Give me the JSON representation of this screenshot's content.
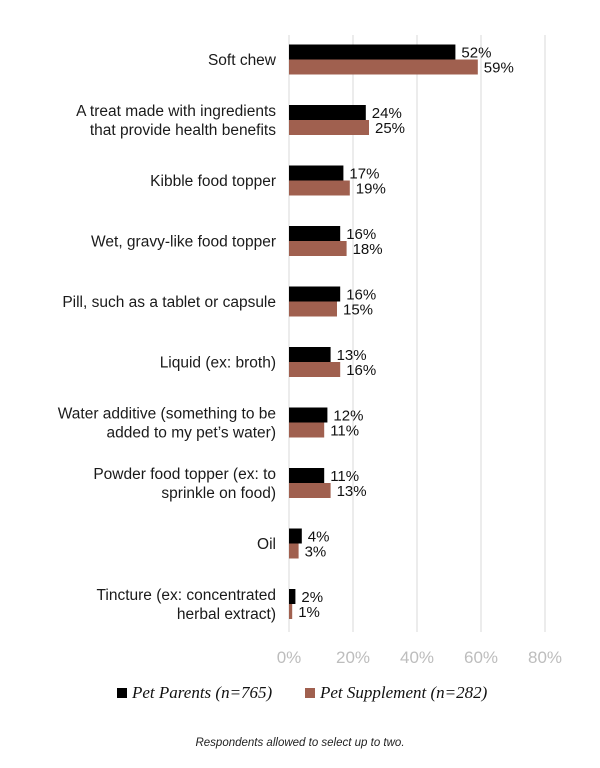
{
  "chart_data": {
    "type": "bar",
    "orientation": "horizontal",
    "title": "",
    "xlabel": "",
    "ylabel": "",
    "xlim": [
      0,
      80
    ],
    "xticks": [
      "0%",
      "20%",
      "40%",
      "60%",
      "80%"
    ],
    "grid": true,
    "legend_position": "bottom",
    "categories": [
      [
        "Soft chew"
      ],
      [
        "A treat made with ingredients",
        "that provide health benefits"
      ],
      [
        "Kibble food topper"
      ],
      [
        "Wet, gravy-like food topper"
      ],
      [
        "Pill, such as a tablet or capsule"
      ],
      [
        "Liquid (ex: broth)"
      ],
      [
        "Water additive (something to be",
        "added to my pet’s water)"
      ],
      [
        "Powder food topper (ex: to",
        "sprinkle on food)"
      ],
      [
        "Oil"
      ],
      [
        "Tincture (ex: concentrated",
        "herbal extract)"
      ]
    ],
    "series": [
      {
        "name": "Pet Parents (n=765)",
        "color": "#000000",
        "values": [
          52,
          24,
          17,
          16,
          16,
          13,
          12,
          11,
          4,
          2
        ],
        "labels": [
          "52%",
          "24%",
          "17%",
          "16%",
          "16%",
          "13%",
          "12%",
          "11%",
          "4%",
          "2%"
        ]
      },
      {
        "name": "Pet Supplement (n=282)",
        "color": "#a0604f",
        "values": [
          59,
          25,
          19,
          18,
          15,
          16,
          11,
          13,
          3,
          1
        ],
        "labels": [
          "59%",
          "25%",
          "19%",
          "18%",
          "15%",
          "16%",
          "11%",
          "13%",
          "3%",
          "1%"
        ]
      }
    ]
  },
  "footnote": "Respondents allowed to select up to two."
}
